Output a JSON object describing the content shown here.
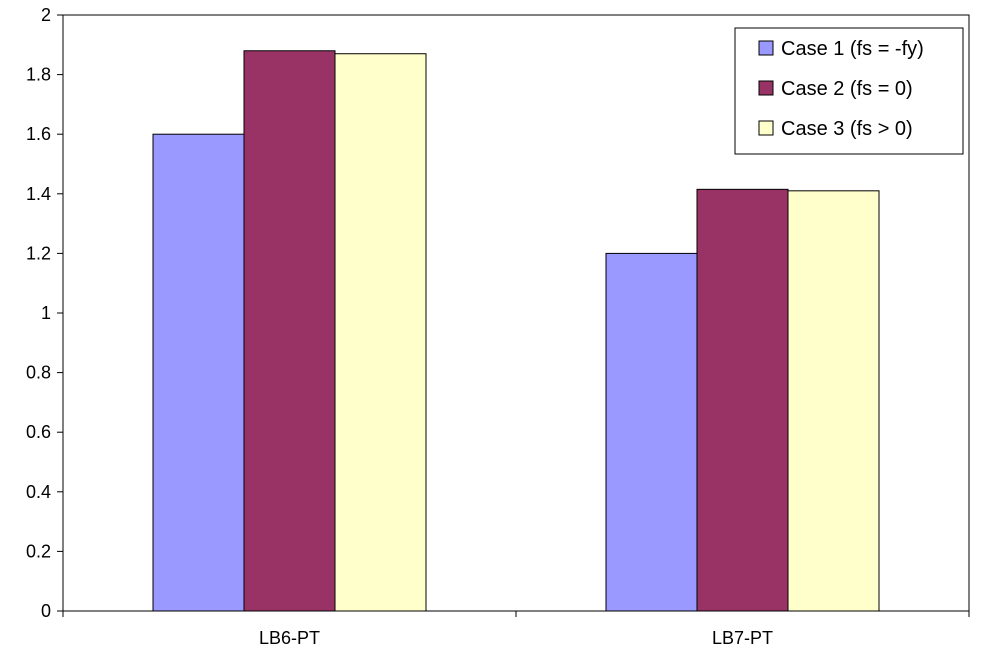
{
  "chart_data": {
    "type": "bar",
    "categories": [
      "LB6-PT",
      "LB7-PT"
    ],
    "series": [
      {
        "name": "Case 1 (fs = -fy)",
        "color": "#9999ff",
        "values": [
          1.6,
          1.2
        ]
      },
      {
        "name": "Case 2 (fs = 0)",
        "color": "#993366",
        "values": [
          1.88,
          1.415
        ]
      },
      {
        "name": "Case 3 (fs > 0)",
        "color": "#ffffcc",
        "values": [
          1.87,
          1.41
        ]
      }
    ],
    "ylim": [
      0,
      2
    ],
    "yticks": [
      0,
      0.2,
      0.4,
      0.6,
      0.8,
      1,
      1.2,
      1.4,
      1.6,
      1.8,
      2
    ],
    "ytick_labels": [
      "0",
      "0.2",
      "0.4",
      "0.6",
      "0.8",
      "1",
      "1.2",
      "1.4",
      "1.6",
      "1.8",
      "2"
    ],
    "title": "",
    "xlabel": "",
    "ylabel": "",
    "grid": false,
    "legend_position": "top-right"
  }
}
